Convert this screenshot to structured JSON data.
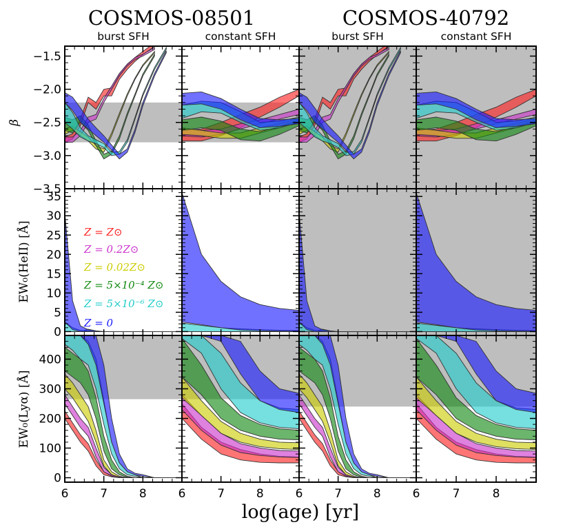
{
  "figure": {
    "titles": [
      "COSMOS-08501",
      "COSMOS-40792"
    ],
    "subtitles": [
      "burst SFH",
      "constant SFH",
      "burst SFH",
      "constant SFH"
    ],
    "xlabel": "log(age) [yr]",
    "ylabels": [
      "β",
      "EW₀(HeII) [Å]",
      "EW₀(Lyα) [Å]"
    ]
  },
  "legend": {
    "entries": [
      {
        "label": "Z = Z⊙",
        "color": "#ff2020"
      },
      {
        "label": "Z = 0.2Z⊙",
        "color": "#cc33cc"
      },
      {
        "label": "Z = 0.02Z⊙",
        "color": "#cccc00"
      },
      {
        "label": "Z = 5×10⁻⁴ Z⊙",
        "color": "#118811"
      },
      {
        "label": "Z = 5×10⁻⁶ Z⊙",
        "color": "#22cccc"
      },
      {
        "label": "Z = 0",
        "color": "#1a1aff"
      }
    ]
  },
  "chart_data": {
    "type": "area",
    "x": {
      "label": "log(age) [yr]",
      "lim": [
        6,
        9
      ],
      "ticks": [
        6,
        7,
        8
      ]
    },
    "rows": [
      {
        "quantity": "beta",
        "ylabel": "β",
        "lim": [
          -3.5,
          -1.35
        ],
        "ticks": [
          -3.5,
          -3.0,
          -2.5,
          -2.0,
          -1.5
        ],
        "tick_labels": [
          "−3.5",
          "−3.0",
          "−2.5",
          "−2.0",
          "−1.5"
        ]
      },
      {
        "quantity": "EW_HeII",
        "ylabel": "EW₀(HeII) [Å]",
        "lim": [
          -1,
          37
        ],
        "ticks": [
          0,
          5,
          10,
          15,
          20,
          25,
          30,
          35
        ],
        "tick_labels": [
          "0",
          "5",
          "10",
          "15",
          "20",
          "25",
          "30",
          "35"
        ]
      },
      {
        "quantity": "EW_Lya",
        "ylabel": "EW₀(Lyα) [Å]",
        "lim": [
          -15,
          480
        ],
        "ticks": [
          0,
          100,
          200,
          300,
          400
        ],
        "tick_labels": [
          "0",
          "100",
          "200",
          "300",
          "400"
        ]
      }
    ],
    "observed_ranges": {
      "COSMOS-08501": {
        "beta": [
          -2.8,
          -2.2
        ],
        "EW_HeII": null,
        "EW_Lya": [
          265,
          480
        ]
      },
      "COSMOS-40792": {
        "beta": "all",
        "EW_HeII": "all",
        "EW_Lya": [
          240,
          480
        ]
      }
    },
    "series_colors": [
      "#ff2020",
      "#cc33cc",
      "#cccc00",
      "#118811",
      "#22cccc",
      "#1a1aff"
    ],
    "constant_sfh": {
      "x": [
        6.0,
        6.5,
        7.0,
        7.5,
        8.0,
        8.5,
        9.0
      ],
      "beta": [
        {
          "lower": [
            -2.78,
            -2.78,
            -2.7,
            -2.58,
            -2.42,
            -2.27,
            -2.1
          ],
          "upper": [
            -2.62,
            -2.6,
            -2.5,
            -2.38,
            -2.27,
            -2.12,
            -2.0
          ]
        },
        {
          "lower": [
            -2.7,
            -2.72,
            -2.68,
            -2.6,
            -2.52,
            -2.45,
            -2.38
          ],
          "upper": [
            -2.6,
            -2.62,
            -2.6,
            -2.52,
            -2.46,
            -2.38,
            -2.3
          ]
        },
        {
          "lower": [
            -2.68,
            -2.7,
            -2.74,
            -2.74,
            -2.66,
            -2.58,
            -2.5
          ],
          "upper": [
            -2.58,
            -2.62,
            -2.66,
            -2.66,
            -2.58,
            -2.52,
            -2.44
          ]
        },
        {
          "lower": [
            -2.62,
            -2.58,
            -2.62,
            -2.76,
            -2.78,
            -2.68,
            -2.55
          ],
          "upper": [
            -2.46,
            -2.42,
            -2.48,
            -2.6,
            -2.64,
            -2.56,
            -2.46
          ]
        },
        {
          "lower": [
            -2.44,
            -2.34,
            -2.36,
            -2.5,
            -2.62,
            -2.58,
            -2.5
          ],
          "upper": [
            -2.24,
            -2.18,
            -2.2,
            -2.34,
            -2.5,
            -2.48,
            -2.42
          ]
        },
        {
          "lower": [
            -2.24,
            -2.22,
            -2.3,
            -2.46,
            -2.58,
            -2.56,
            -2.52
          ],
          "upper": [
            -2.06,
            -2.04,
            -2.14,
            -2.3,
            -2.44,
            -2.46,
            -2.44
          ]
        }
      ],
      "EW_HeII": [
        {
          "lower": [
            0,
            0,
            0,
            0,
            0,
            0,
            0
          ],
          "upper": [
            0,
            0,
            0,
            0,
            0,
            0,
            0
          ]
        },
        {
          "lower": [
            0,
            0,
            0,
            0,
            0,
            0,
            0
          ],
          "upper": [
            0,
            0,
            0,
            0,
            0,
            0,
            0
          ]
        },
        {
          "lower": [
            0,
            0,
            0,
            0,
            0,
            0,
            0
          ],
          "upper": [
            0,
            0,
            0,
            0,
            0,
            0,
            0
          ]
        },
        {
          "lower": [
            0,
            0,
            0,
            0,
            0,
            0,
            0
          ],
          "upper": [
            0,
            0,
            0,
            0,
            0,
            0,
            0
          ]
        },
        {
          "lower": [
            0,
            0,
            0,
            0,
            0,
            0,
            0
          ],
          "upper": [
            2.2,
            1.6,
            1.0,
            0.7,
            0.5,
            0.35,
            0.25
          ]
        },
        {
          "lower": [
            2.5,
            1.8,
            1.0,
            0.4,
            0.2,
            0.1,
            0.05
          ],
          "upper": [
            36,
            20,
            13,
            9,
            7,
            6,
            5.5
          ]
        }
      ],
      "EW_Lya": [
        {
          "lower": [
            200,
            130,
            80,
            60,
            52,
            50,
            50
          ],
          "upper": [
            250,
            170,
            120,
            95,
            80,
            72,
            70
          ]
        },
        {
          "lower": [
            230,
            160,
            110,
            85,
            75,
            70,
            68
          ],
          "upper": [
            280,
            210,
            150,
            115,
            100,
            92,
            90
          ]
        },
        {
          "lower": [
            270,
            210,
            150,
            120,
            105,
            98,
            95
          ],
          "upper": [
            340,
            260,
            190,
            150,
            130,
            120,
            118
          ]
        },
        {
          "lower": [
            340,
            280,
            200,
            160,
            140,
            130,
            128
          ],
          "upper": [
            470,
            380,
            270,
            210,
            180,
            165,
            160
          ]
        },
        {
          "lower": [
            470,
            420,
            300,
            220,
            185,
            170,
            165
          ],
          "upper": [
            480,
            480,
            420,
            320,
            260,
            235,
            230
          ]
        },
        {
          "lower": [
            480,
            480,
            460,
            350,
            260,
            230,
            220
          ],
          "upper": [
            480,
            480,
            480,
            460,
            360,
            300,
            285
          ]
        }
      ]
    },
    "burst_sfh": {
      "x": [
        6.0,
        6.2,
        6.4,
        6.6,
        6.8,
        7.0,
        7.2,
        7.4,
        7.6,
        7.8,
        8.0,
        8.3,
        8.6,
        9.0
      ],
      "beta": [
        {
          "lower": [
            -2.8,
            -2.75,
            -2.55,
            -2.2,
            -2.3,
            -2.1,
            -2.1,
            -1.85,
            -1.7,
            -1.58,
            -1.48,
            -1.35,
            null,
            null
          ],
          "upper": [
            -2.72,
            -2.67,
            -2.45,
            -2.12,
            -2.2,
            -2.0,
            -1.98,
            -1.78,
            -1.63,
            -1.52,
            -1.43,
            -1.3,
            null,
            null
          ]
        },
        {
          "lower": [
            -2.8,
            -2.8,
            -2.7,
            -2.5,
            -2.45,
            -2.2,
            -2.0,
            -1.8,
            -1.65,
            -1.55,
            -1.5,
            -1.4,
            null,
            null
          ],
          "upper": [
            -2.72,
            -2.72,
            -2.62,
            -2.42,
            -2.38,
            -2.14,
            -1.95,
            -1.76,
            -1.62,
            -1.52,
            -1.47,
            -1.37,
            null,
            null
          ]
        },
        {
          "lower": [
            -2.68,
            -2.62,
            -2.7,
            -2.78,
            -2.9,
            -2.95,
            -2.7,
            -2.4,
            -2.1,
            -1.85,
            -1.65,
            -1.45,
            null,
            null
          ],
          "upper": [
            -2.6,
            -2.56,
            -2.64,
            -2.72,
            -2.85,
            -2.9,
            -2.66,
            -2.36,
            -2.07,
            -1.83,
            -1.63,
            -1.43,
            null,
            null
          ]
        },
        {
          "lower": [
            -2.62,
            -2.66,
            -2.5,
            -2.62,
            -2.85,
            -3.05,
            -2.98,
            -2.75,
            -2.4,
            -2.1,
            -1.8,
            -1.5,
            null,
            null
          ],
          "upper": [
            -2.42,
            -2.46,
            -2.4,
            -2.54,
            -2.78,
            -2.98,
            -2.93,
            -2.7,
            -2.36,
            -2.07,
            -1.77,
            -1.47,
            null,
            null
          ]
        },
        {
          "lower": [
            -2.5,
            -2.6,
            -2.72,
            -2.78,
            -2.82,
            -2.88,
            -3.0,
            -2.98,
            -2.8,
            -2.45,
            -2.1,
            -1.7,
            -1.4,
            null
          ],
          "upper": [
            -2.2,
            -2.35,
            -2.58,
            -2.7,
            -2.76,
            -2.82,
            -2.95,
            -2.94,
            -2.76,
            -2.42,
            -2.07,
            -1.67,
            -1.37,
            null
          ]
        },
        {
          "lower": [
            -2.2,
            -2.32,
            -2.5,
            -2.6,
            -2.7,
            -2.8,
            -2.92,
            -3.05,
            -2.95,
            -2.65,
            -2.25,
            -1.8,
            -1.45,
            null
          ],
          "upper": [
            -2.05,
            -2.12,
            -2.28,
            -2.45,
            -2.58,
            -2.7,
            -2.84,
            -2.98,
            -2.9,
            -2.6,
            -2.2,
            -1.76,
            -1.42,
            null
          ]
        }
      ],
      "EW_HeII": [
        {
          "lower": [
            0,
            0,
            0,
            0,
            0,
            0,
            0,
            0,
            0,
            0,
            0,
            0,
            0,
            0
          ],
          "upper": [
            0,
            0,
            0,
            0,
            0,
            0,
            0,
            0,
            0,
            0,
            0,
            0,
            0,
            0
          ]
        },
        {
          "lower": [
            0,
            0,
            0,
            0,
            0,
            0,
            0,
            0,
            0,
            0,
            0,
            0,
            0,
            0
          ],
          "upper": [
            0,
            0,
            0,
            0,
            0,
            0,
            0,
            0,
            0,
            0,
            0,
            0,
            0,
            0
          ]
        },
        {
          "lower": [
            0,
            0,
            0,
            0,
            0,
            0,
            0,
            0,
            0,
            0,
            0,
            0,
            0,
            0
          ],
          "upper": [
            0,
            0,
            0,
            0,
            0,
            0,
            0,
            0,
            0,
            0,
            0,
            0,
            0,
            0
          ]
        },
        {
          "lower": [
            0,
            0,
            0,
            0,
            0,
            0,
            0,
            0,
            0,
            0,
            0,
            0,
            0,
            0
          ],
          "upper": [
            0,
            0,
            0,
            0.6,
            0.2,
            0,
            0,
            0,
            0,
            0,
            0,
            0,
            0,
            0
          ]
        },
        {
          "lower": [
            0,
            0,
            0,
            0,
            0,
            0,
            0,
            0,
            0,
            0,
            0,
            0,
            0,
            0
          ],
          "upper": [
            2.5,
            1.0,
            0.3,
            0.1,
            0,
            0,
            0,
            0,
            0,
            0,
            0,
            0,
            0,
            0
          ]
        },
        {
          "lower": [
            2.5,
            0.5,
            0,
            0,
            0,
            0,
            0,
            0,
            0,
            0,
            0,
            0,
            0,
            0
          ],
          "upper": [
            31,
            8,
            1.5,
            0.5,
            0.2,
            0,
            0,
            0,
            0,
            0,
            0,
            0,
            0,
            0
          ]
        }
      ],
      "EW_Lya": [
        {
          "lower": [
            200,
            160,
            120,
            90,
            40,
            10,
            3,
            0,
            0,
            0,
            0,
            0,
            0,
            0
          ],
          "upper": [
            225,
            185,
            145,
            115,
            60,
            20,
            8,
            2,
            0,
            0,
            0,
            0,
            0,
            0
          ]
        },
        {
          "lower": [
            250,
            210,
            170,
            140,
            70,
            20,
            5,
            0,
            0,
            0,
            0,
            0,
            0,
            0
          ],
          "upper": [
            280,
            240,
            200,
            170,
            100,
            35,
            10,
            3,
            0,
            0,
            0,
            0,
            0,
            0
          ]
        },
        {
          "lower": [
            300,
            270,
            230,
            190,
            120,
            40,
            10,
            2,
            0,
            0,
            0,
            0,
            0,
            0
          ],
          "upper": [
            350,
            320,
            280,
            240,
            160,
            60,
            20,
            5,
            0,
            0,
            0,
            0,
            0,
            0
          ]
        },
        {
          "lower": [
            360,
            340,
            320,
            280,
            200,
            90,
            30,
            10,
            2,
            0,
            0,
            0,
            0,
            0
          ],
          "upper": [
            440,
            420,
            400,
            360,
            270,
            140,
            60,
            20,
            5,
            0,
            0,
            0,
            0,
            0
          ]
        },
        {
          "lower": [
            450,
            430,
            400,
            380,
            300,
            180,
            80,
            30,
            10,
            5,
            0,
            0,
            0,
            0
          ],
          "upper": [
            480,
            480,
            480,
            460,
            400,
            260,
            120,
            50,
            20,
            10,
            0,
            0,
            0,
            0
          ]
        },
        {
          "lower": [
            480,
            480,
            480,
            450,
            380,
            250,
            120,
            50,
            20,
            10,
            5,
            0,
            0,
            0
          ],
          "upper": [
            480,
            480,
            480,
            480,
            480,
            380,
            200,
            80,
            30,
            15,
            10,
            0,
            0,
            0
          ]
        }
      ]
    }
  }
}
